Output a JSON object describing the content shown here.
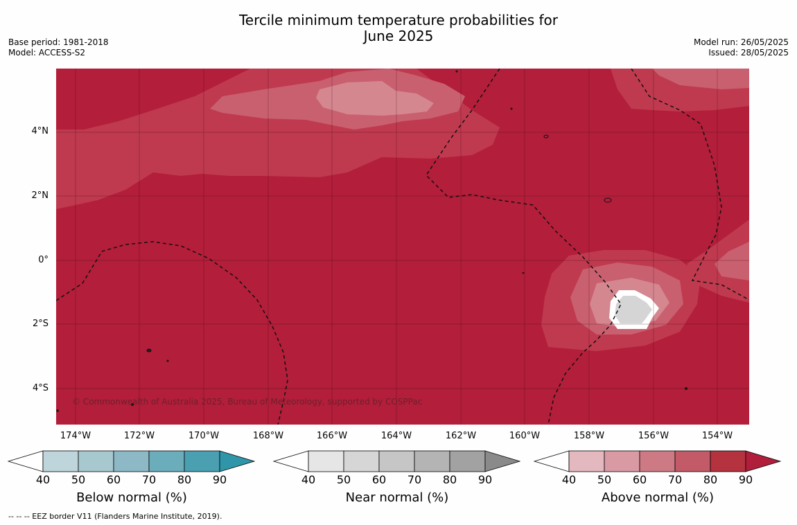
{
  "title_line1": "Tercile minimum temperature probabilities for",
  "title_line2": "June 2025",
  "base_period": "Base period: 1981-2018",
  "model": "Model: ACCESS-S2",
  "model_run": "Model run: 26/05/2025",
  "issued": "Issued: 28/05/2025",
  "copyright": "© Commonwealth of Australia 2025, Bureau of Meteorology, supported by COSPPac",
  "footnote": "-- -- -- EEZ border V11 (Flanders Marine Institute, 2019).",
  "lat_labels": [
    "4°N",
    "2°N",
    "0°",
    "2°S",
    "4°S"
  ],
  "lon_labels": [
    "174°W",
    "172°W",
    "170°W",
    "168°W",
    "166°W",
    "164°W",
    "162°W",
    "160°W",
    "158°W",
    "156°W",
    "154°W"
  ],
  "colorbars": [
    {
      "title": "Below normal (%)",
      "ticks": [
        "40",
        "50",
        "60",
        "70",
        "80",
        "90"
      ],
      "colors": [
        "#bfd5dc",
        "#a8c8cf",
        "#8cb9c5",
        "#6cadbb",
        "#4aa0b1"
      ],
      "extend_color": "#2f95a8"
    },
    {
      "title": "Near normal (%)",
      "ticks": [
        "40",
        "50",
        "60",
        "70",
        "80",
        "90"
      ],
      "colors": [
        "#e6e6e6",
        "#d6d6d6",
        "#c6c6c6",
        "#b4b4b4",
        "#a2a2a2"
      ],
      "extend_color": "#8a8a8a"
    },
    {
      "title": "Above normal (%)",
      "ticks": [
        "40",
        "50",
        "60",
        "70",
        "80",
        "90"
      ],
      "colors": [
        "#e3b8bf",
        "#d99aa3",
        "#ce7a85",
        "#c35a67",
        "#b5333f"
      ],
      "extend_color": "#b01e3b"
    }
  ],
  "colors": {
    "above_80": "#b31e3a",
    "above_70": "#bf3a4e",
    "above_60": "#c9606f",
    "above_50": "#d58790",
    "near_normal": "#d5d5d5"
  }
}
